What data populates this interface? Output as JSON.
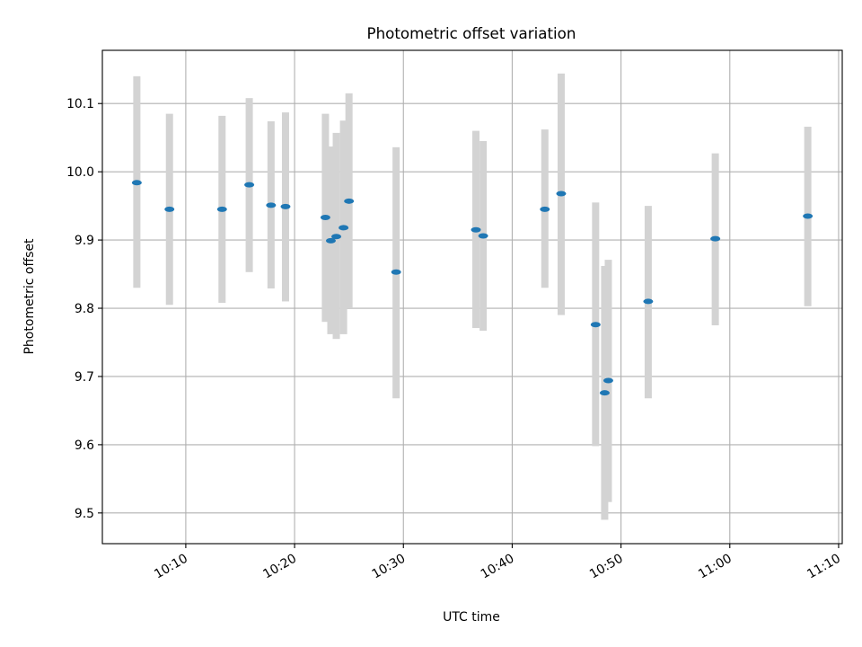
{
  "chart_data": {
    "type": "scatter",
    "title": "Photometric offset variation",
    "xlabel": "UTC time",
    "ylabel": "Photometric offset",
    "x_ticks": [
      "10:10",
      "10:20",
      "10:30",
      "10:40",
      "10:50",
      "11:00",
      "11:10"
    ],
    "y_ticks": [
      "9.5",
      "9.6",
      "9.7",
      "9.8",
      "9.9",
      "10.0",
      "10.1"
    ],
    "xlim": [
      "10:02:20",
      "11:10:20"
    ],
    "ylim": [
      9.455,
      10.178
    ],
    "grid": true,
    "errorbar_color": "#d3d3d3",
    "point_color": "#1f77b4",
    "points": [
      {
        "t": "10:05:30",
        "y": 9.984,
        "low": 9.83,
        "high": 10.14
      },
      {
        "t": "10:08:30",
        "y": 9.945,
        "low": 9.805,
        "high": 10.085
      },
      {
        "t": "10:13:20",
        "y": 9.945,
        "low": 9.808,
        "high": 10.082
      },
      {
        "t": "10:15:50",
        "y": 9.981,
        "low": 9.853,
        "high": 10.108
      },
      {
        "t": "10:17:50",
        "y": 9.951,
        "low": 9.829,
        "high": 10.074
      },
      {
        "t": "10:19:10",
        "y": 9.949,
        "low": 9.81,
        "high": 10.087
      },
      {
        "t": "10:22:50",
        "y": 9.933,
        "low": 9.78,
        "high": 10.085
      },
      {
        "t": "10:23:20",
        "y": 9.899,
        "low": 9.762,
        "high": 10.037
      },
      {
        "t": "10:23:50",
        "y": 9.905,
        "low": 9.755,
        "high": 10.057
      },
      {
        "t": "10:24:30",
        "y": 9.918,
        "low": 9.762,
        "high": 10.075
      },
      {
        "t": "10:25:00",
        "y": 9.957,
        "low": 9.8,
        "high": 10.115
      },
      {
        "t": "10:29:20",
        "y": 9.853,
        "low": 9.668,
        "high": 10.036
      },
      {
        "t": "10:36:40",
        "y": 9.915,
        "low": 9.771,
        "high": 10.06
      },
      {
        "t": "10:37:20",
        "y": 9.906,
        "low": 9.767,
        "high": 10.045
      },
      {
        "t": "10:43:00",
        "y": 9.945,
        "low": 9.83,
        "high": 10.062
      },
      {
        "t": "10:44:30",
        "y": 9.968,
        "low": 9.79,
        "high": 10.144
      },
      {
        "t": "10:47:40",
        "y": 9.776,
        "low": 9.598,
        "high": 9.955
      },
      {
        "t": "10:48:30",
        "y": 9.676,
        "low": 9.49,
        "high": 9.862
      },
      {
        "t": "10:48:50",
        "y": 9.694,
        "low": 9.516,
        "high": 9.871
      },
      {
        "t": "10:52:30",
        "y": 9.81,
        "low": 9.668,
        "high": 9.95
      },
      {
        "t": "10:58:40",
        "y": 9.902,
        "low": 9.775,
        "high": 10.027
      },
      {
        "t": "11:07:10",
        "y": 9.935,
        "low": 9.803,
        "high": 10.066
      }
    ]
  }
}
